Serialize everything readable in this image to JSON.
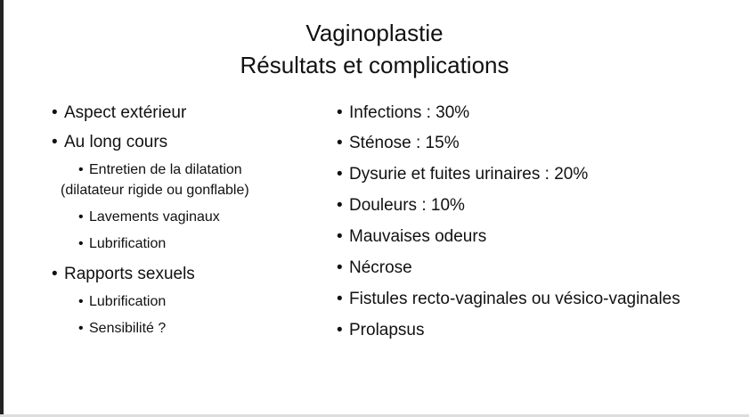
{
  "title": {
    "line1": "Vaginoplastie",
    "line2": "Résultats et complications"
  },
  "left": {
    "items": [
      "Aspect extérieur",
      "Au long cours",
      "Entretien de la dilatation",
      "(dilatateur rigide ou gonflable)",
      "Lavements vaginaux",
      "Lubrification",
      "Rapports sexuels",
      "Lubrification",
      "Sensibilité ?"
    ]
  },
  "right": {
    "items": [
      "Infections : 30%",
      "Sténose : 15%",
      "Dysurie et fuites urinaires : 20%",
      "Douleurs : 10%",
      "Mauvaises odeurs",
      "Nécrose",
      "Fistules recto-vaginales ou vésico-vaginales",
      "Prolapsus"
    ]
  },
  "bullet": "•"
}
